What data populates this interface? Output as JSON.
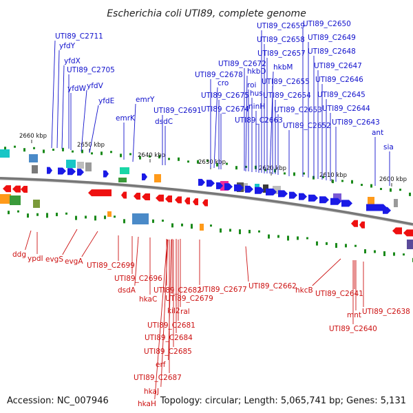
{
  "title": "Escherichia coli UTI89, complete genome",
  "footer": {
    "accession": "Accession: NC_007946",
    "summary": "Topology: circular; Length: 5,065,741 bp; Genes: 5,131"
  },
  "ticks": [
    "2660 kbp",
    "2650 kbp",
    "2640 kbp",
    "2630 kbp",
    "2620 kbp",
    "2610 kbp",
    "2600 kbp"
  ],
  "top_labels": [
    "UTI89_C2711",
    "yfdY",
    "yfdX",
    "UTI89_C2705",
    "yfdW",
    "yfdV",
    "yfdE",
    "emrK",
    "emrY",
    "UTI89_C2691",
    "dsdC",
    "UTI89_C2678",
    "cro",
    "UTI89_C2675",
    "UTI89_C2674",
    "UTI89_C2672",
    "hkbD",
    "roi",
    "hus",
    "ninH",
    "UTI89_C2663",
    "UTI89_C2659",
    "UTI89_C2658",
    "UTI89_C2657",
    "hkbM",
    "UTI89_C2655",
    "UTI89_C2654",
    "UTI89_C2653",
    "UTI89_C2652",
    "UTI89_C2650",
    "UTI89_C2649",
    "UTI89_C2648",
    "UTI89_C2647",
    "UTI89_C2646",
    "UTI89_C2645",
    "UTI89_C2644",
    "UTI89_C2643",
    "ant",
    "sia"
  ],
  "bottom_labels": [
    "ddg",
    "ypdI",
    "evgS",
    "evgA",
    "UTI89_C2699",
    "UTI89_C2696",
    "dsdA",
    "hkaC",
    "UTI89_C2682",
    "UTI89_C2679",
    "kil2",
    "ral",
    "UTI89_C2681",
    "UTI89_C2684",
    "UTI89_C2685",
    "erf",
    "UTI89_C2687",
    "hkaJ",
    "hkaH",
    "UTI89_C2677",
    "UTI89_C2662",
    "hkcB",
    "UTI89_C2641",
    "mnt",
    "UTI89_C2638",
    "UTI89_C2640"
  ],
  "colors": {
    "top_label": "#1010cc",
    "bottom_label": "#cc1010",
    "forward_gene": "#1a1ae6",
    "reverse_gene": "#ee1010",
    "backbone": "#7a7a7a",
    "gc_marks": "#1a8a1a"
  }
}
